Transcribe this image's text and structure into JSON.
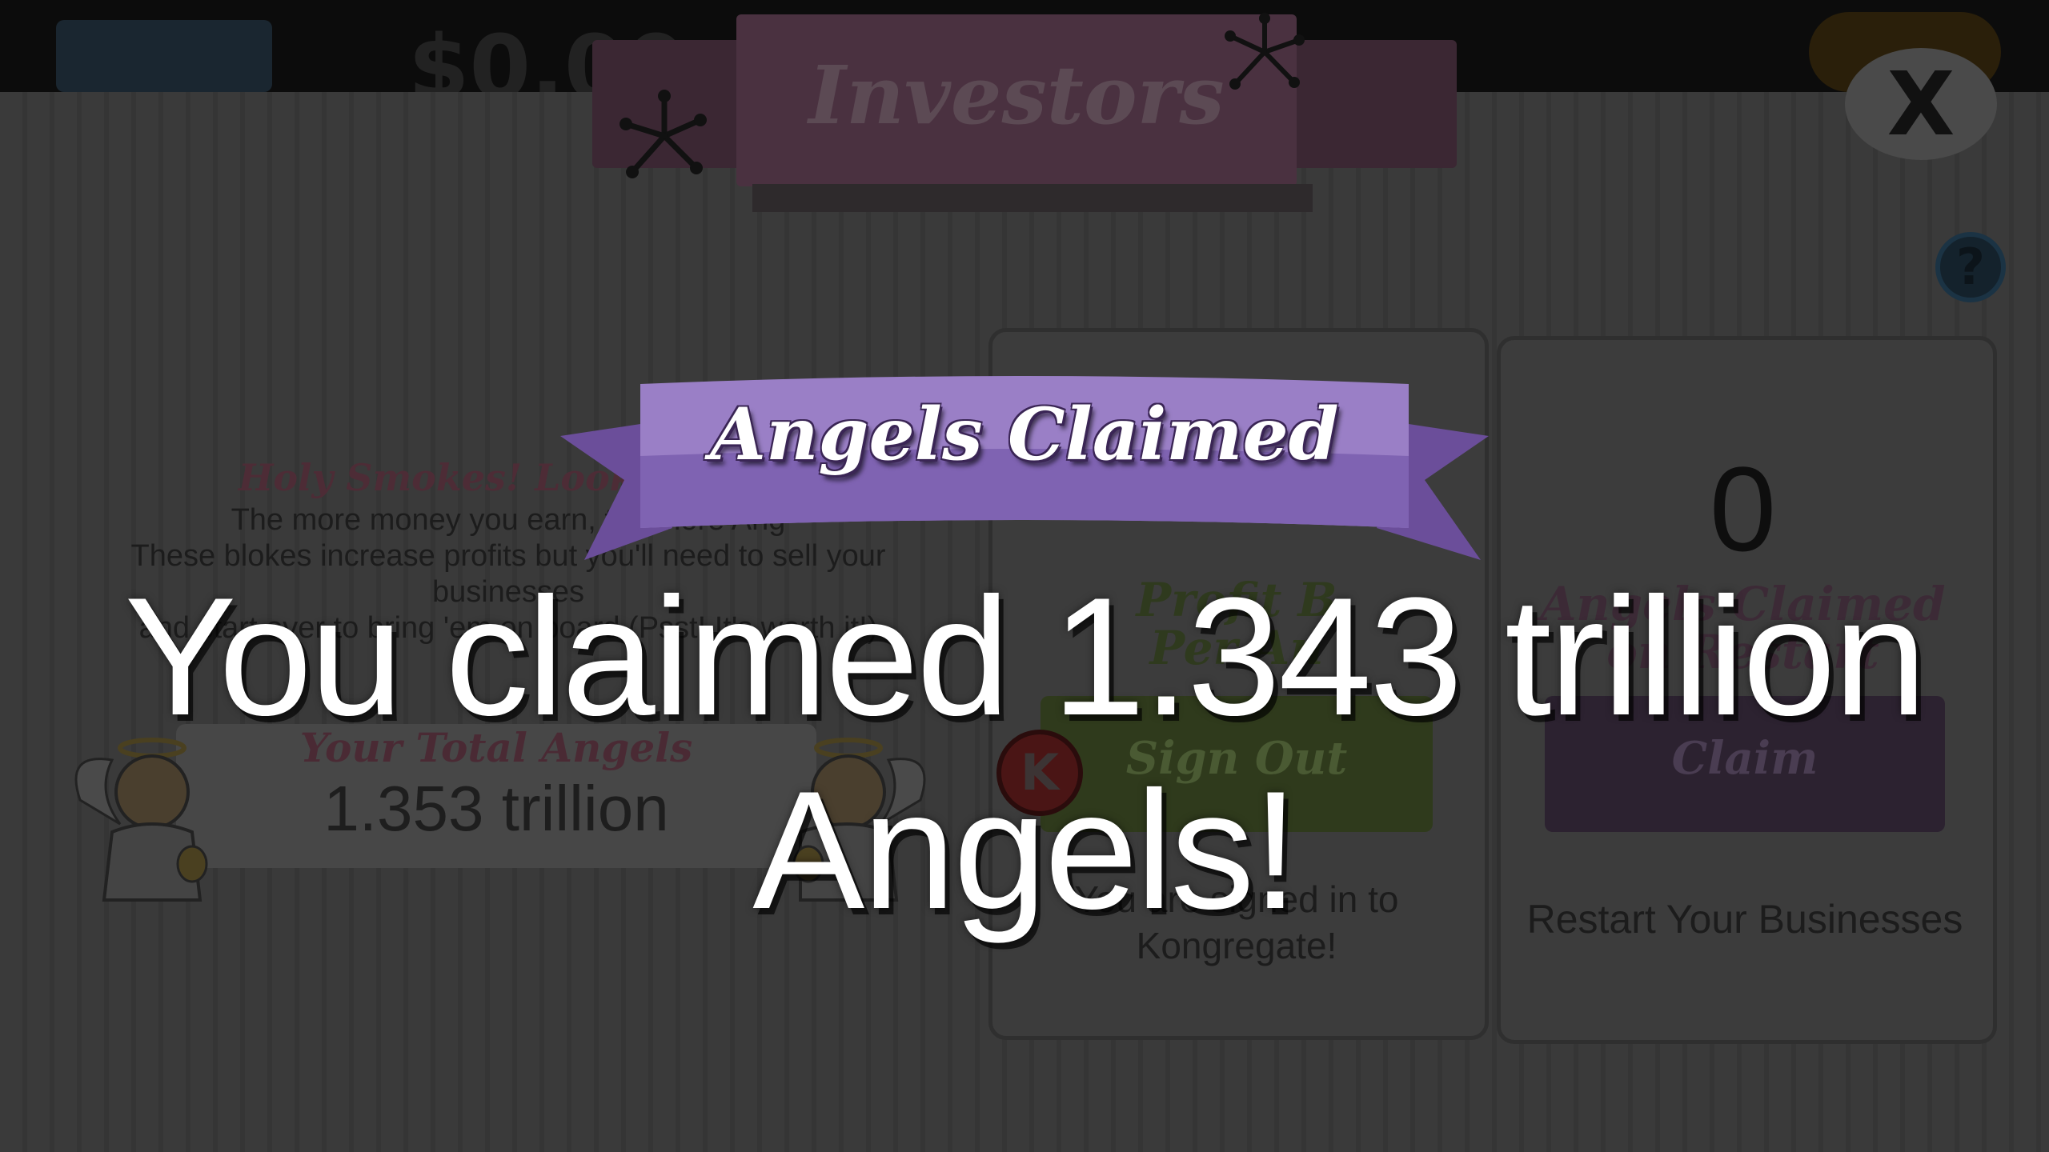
{
  "topbar": {
    "money_text": "$0.00"
  },
  "panel": {
    "title": "Investors",
    "close_label": "X",
    "help_label": "?",
    "info": {
      "subtitle": "Holy Smokes! Look at tho",
      "lines": [
        "The more money you earn, the more Ang",
        "These blokes increase profits but you'll need to sell your businesses",
        "and start over to bring 'em on board (Psst! It's worth it!)"
      ]
    },
    "total": {
      "label": "Your Total Angels",
      "value": "1.353 trillion"
    },
    "kongregate_card": {
      "profit_label_line1": "Profit B",
      "profit_label_line2": "Per An",
      "k_label": "K",
      "button_label": "Sign Out",
      "status_line1": "You are signed in to",
      "status_line2": "Kongregate!"
    },
    "claim_card": {
      "count": "0",
      "label_line1": "Angels Claimed",
      "label_line2": "on Restart",
      "button_label": "Claim",
      "restart_text": "Restart Your Businesses"
    }
  },
  "popup": {
    "ribbon_title": "Angels Claimed",
    "message": "You claimed 1.343 trillion Angels!"
  },
  "colors": {
    "ribbon_main": "#9a7fc6",
    "ribbon_dark": "#6b4e9a",
    "overlay_text": "#ffffff"
  }
}
